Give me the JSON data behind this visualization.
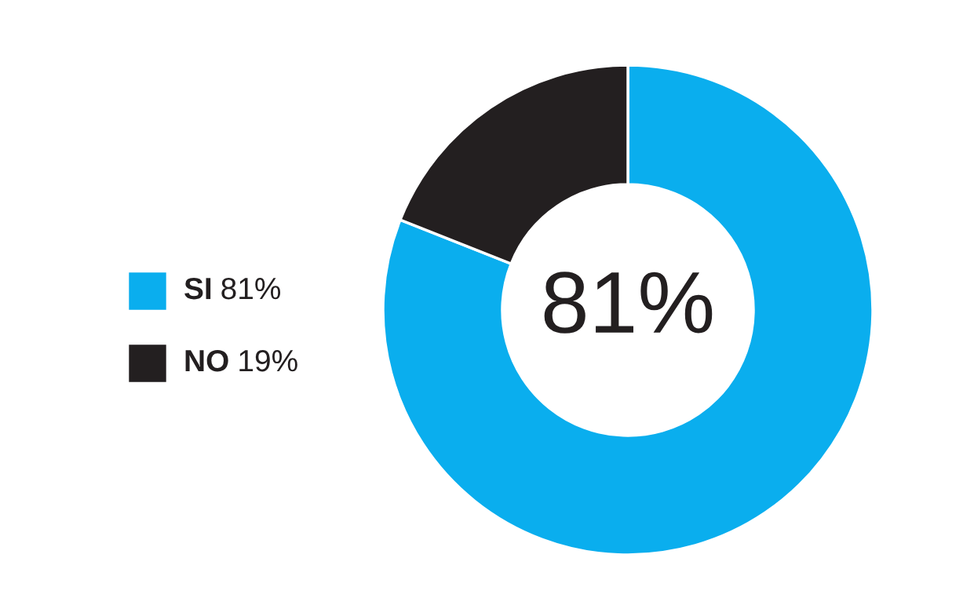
{
  "chart_data": {
    "type": "donut",
    "categories": [
      "SI",
      "NO"
    ],
    "values": [
      81,
      19
    ],
    "colors": [
      "#0aaeee",
      "#231f20"
    ],
    "value_labels": [
      "81%",
      "19%"
    ],
    "legend": "left",
    "annotations": [
      "81%"
    ]
  }
}
